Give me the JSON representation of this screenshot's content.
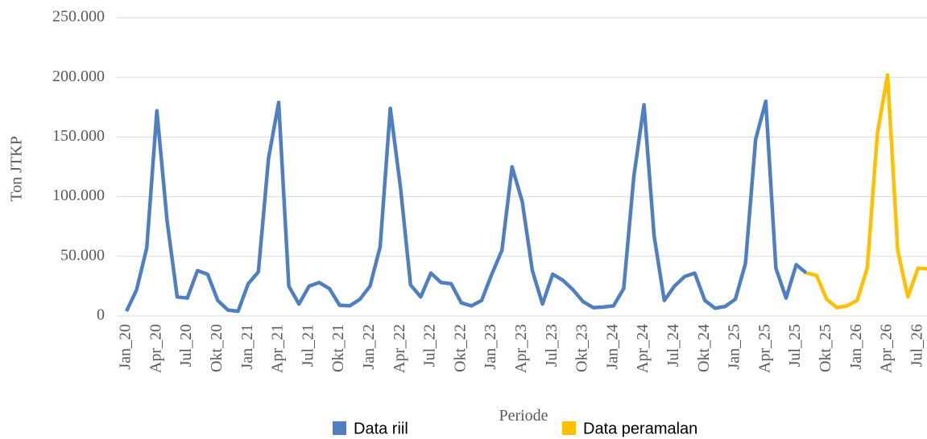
{
  "chart_data": {
    "type": "line",
    "x_label": "Periode",
    "y_label": "Ton JTKP",
    "categories": [
      "Jan_20",
      null,
      null,
      "Apr_20",
      null,
      null,
      "Jul_20",
      null,
      null,
      "Okt_20",
      null,
      null,
      "Jan_21",
      null,
      null,
      "Apr_21",
      null,
      null,
      "Jul_21",
      null,
      null,
      "Okt_21",
      null,
      null,
      "Jan_22",
      null,
      null,
      "Apr_22",
      null,
      null,
      "Jul_22",
      null,
      null,
      "Okt_22",
      null,
      null,
      "Jan_23",
      null,
      null,
      "Apr_23",
      null,
      null,
      "Jul_23",
      null,
      null,
      "Okt_23",
      null,
      null,
      "Jan_24",
      null,
      null,
      "Apr_24",
      null,
      null,
      "Jul_24",
      null,
      null,
      "Okt_24",
      null,
      null,
      "Jan_25",
      null,
      null,
      "Apr_25",
      null,
      null,
      "Jul_25",
      null,
      null,
      "Okt_25",
      null,
      null,
      "Jan_26",
      null,
      null,
      "Apr_26",
      null,
      null,
      "Jul_26",
      null
    ],
    "series": [
      {
        "name": "Data riil",
        "color": "#4f7fbf",
        "values": [
          4000,
          22000,
          57000,
          172000,
          80000,
          16000,
          15000,
          38000,
          35000,
          13000,
          5000,
          4000,
          27000,
          37000,
          132000,
          179000,
          25000,
          10000,
          25000,
          28000,
          23000,
          9000,
          8500,
          14000,
          25000,
          58000,
          174000,
          108000,
          26000,
          16000,
          36000,
          28000,
          27000,
          11000,
          8500,
          13000,
          35000,
          55000,
          125000,
          96000,
          38000,
          10000,
          35000,
          30000,
          22000,
          12000,
          7000,
          7500,
          8500,
          23000,
          117000,
          177000,
          67000,
          13000,
          25000,
          33000,
          36000,
          13000,
          6500,
          8000,
          14000,
          44000,
          148000,
          180000,
          40000,
          15000,
          43000,
          36000,
          null,
          null,
          null,
          null,
          null,
          null,
          null,
          null,
          null,
          null,
          null,
          null
        ]
      },
      {
        "name": "Data peramalan",
        "color": "#ffc000",
        "values": [
          null,
          null,
          null,
          null,
          null,
          null,
          null,
          null,
          null,
          null,
          null,
          null,
          null,
          null,
          null,
          null,
          null,
          null,
          null,
          null,
          null,
          null,
          null,
          null,
          null,
          null,
          null,
          null,
          null,
          null,
          null,
          null,
          null,
          null,
          null,
          null,
          null,
          null,
          null,
          null,
          null,
          null,
          null,
          null,
          null,
          null,
          null,
          null,
          null,
          null,
          null,
          null,
          null,
          null,
          null,
          null,
          null,
          null,
          null,
          null,
          null,
          null,
          null,
          null,
          null,
          null,
          null,
          36000,
          34000,
          14000,
          7000,
          8500,
          13000,
          40000,
          153000,
          202000,
          55000,
          16000,
          40000,
          39500
        ]
      }
    ],
    "ylim": [
      0,
      250000
    ],
    "yticks": [
      0,
      {
        "value": 50000,
        "label": "50.000"
      },
      {
        "value": 100000,
        "label": "100.000"
      },
      {
        "value": 150000,
        "label": "150.000"
      },
      {
        "value": 200000,
        "label": "200.000"
      },
      {
        "value": 250000,
        "label": "250.000"
      }
    ],
    "grid": true,
    "legend": "bottom"
  }
}
